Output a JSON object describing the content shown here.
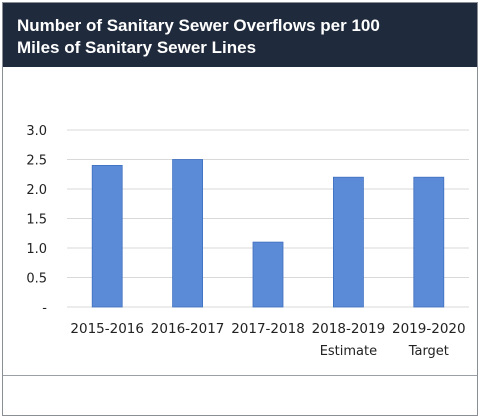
{
  "header": {
    "title_line1": "Number of Sanitary Sewer Overflows per 100",
    "title_line2": "Miles of Sanitary Sewer Lines"
  },
  "chart_data": {
    "type": "bar",
    "title": "Number of Sanitary Sewer Overflows per 100 Miles of Sanitary Sewer Lines",
    "categories": [
      "2015-2016",
      "2016-2017",
      "2017-2018",
      "2018-2019",
      "2019-2020"
    ],
    "category_sublabels": [
      "",
      "",
      "",
      "Estimate",
      "Target"
    ],
    "values": [
      2.4,
      2.5,
      1.1,
      2.2,
      2.2
    ],
    "ylim": [
      0,
      3.0
    ],
    "yticks": [
      "-",
      "0.5",
      "1.0",
      "1.5",
      "2.0",
      "2.5",
      "3.0"
    ],
    "ytick_values": [
      0,
      0.5,
      1.0,
      1.5,
      2.0,
      2.5,
      3.0
    ],
    "grid": true,
    "bar_color": "#5b8ad6",
    "bar_edge_color": "#3f6fbf",
    "grid_color": "#d9d9d9"
  }
}
